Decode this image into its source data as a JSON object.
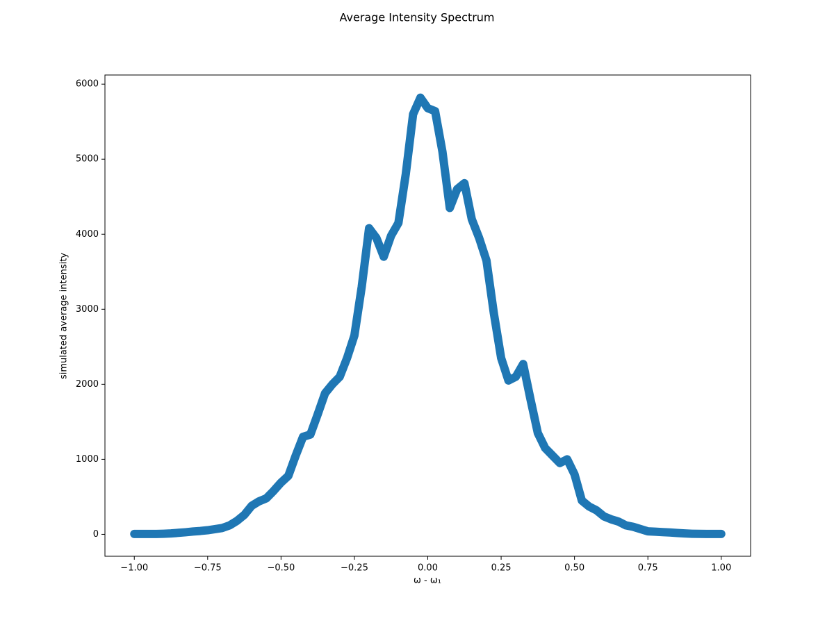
{
  "chart_data": {
    "type": "line",
    "title": "Average Intensity Spectrum",
    "x_label": "ω - ω₁",
    "y_label": "simulated average intensity",
    "x": [
      -1,
      -0.975,
      -0.95,
      -0.925,
      -0.9,
      -0.875,
      -0.85,
      -0.825,
      -0.8,
      -0.775,
      -0.75,
      -0.725,
      -0.7,
      -0.675,
      -0.65,
      -0.625,
      -0.6,
      -0.575,
      -0.55,
      -0.525,
      -0.5,
      -0.475,
      -0.45,
      -0.425,
      -0.4,
      -0.375,
      -0.35,
      -0.325,
      -0.3,
      -0.275,
      -0.25,
      -0.225,
      -0.2,
      -0.175,
      -0.15,
      -0.125,
      -0.1,
      -0.075,
      -0.05,
      -0.025,
      0,
      0.025,
      0.05,
      0.075,
      0.1,
      0.125,
      0.15,
      0.175,
      0.2,
      0.225,
      0.25,
      0.275,
      0.3,
      0.325,
      0.35,
      0.375,
      0.4,
      0.425,
      0.45,
      0.475,
      0.5,
      0.525,
      0.55,
      0.575,
      0.6,
      0.625,
      0.65,
      0.675,
      0.7,
      0.725,
      0.75,
      0.775,
      0.8,
      0.825,
      0.85,
      0.875,
      0.9,
      0.925,
      0.95,
      0.975,
      1
    ],
    "series": [
      {
        "color": "#1f77b4",
        "values": [
          5,
          5,
          5,
          5,
          8,
          12,
          20,
          28,
          38,
          45,
          55,
          70,
          85,
          120,
          180,
          260,
          380,
          440,
          480,
          580,
          690,
          780,
          1050,
          1300,
          1330,
          1600,
          1880,
          2000,
          2100,
          2350,
          2650,
          3300,
          4080,
          3950,
          3700,
          3980,
          4150,
          4800,
          5600,
          5820,
          5680,
          5640,
          5100,
          4350,
          4600,
          4680,
          4200,
          3950,
          3650,
          2950,
          2350,
          2050,
          2100,
          2270,
          1800,
          1350,
          1150,
          1050,
          950,
          1000,
          800,
          450,
          370,
          320,
          240,
          200,
          170,
          120,
          100,
          70,
          40,
          35,
          30,
          25,
          18,
          12,
          8,
          6,
          5,
          5,
          5
        ]
      }
    ],
    "xlim": [
      -1.1,
      1.1
    ],
    "xticks": [
      {
        "value": -1,
        "label": "−1.00"
      },
      {
        "value": -0.75,
        "label": "−0.75"
      },
      {
        "value": -0.5,
        "label": "−0.50"
      },
      {
        "value": -0.25,
        "label": "−0.25"
      },
      {
        "value": 0,
        "label": "0.00"
      },
      {
        "value": 0.25,
        "label": "0.25"
      },
      {
        "value": 0.5,
        "label": "0.50"
      },
      {
        "value": 0.75,
        "label": "0.75"
      },
      {
        "value": 1,
        "label": "1.00"
      }
    ],
    "ylim": [
      -292,
      6122
    ],
    "yticks": [
      0,
      1000,
      2000,
      3000,
      4000,
      5000,
      6000
    ],
    "grid": false
  }
}
